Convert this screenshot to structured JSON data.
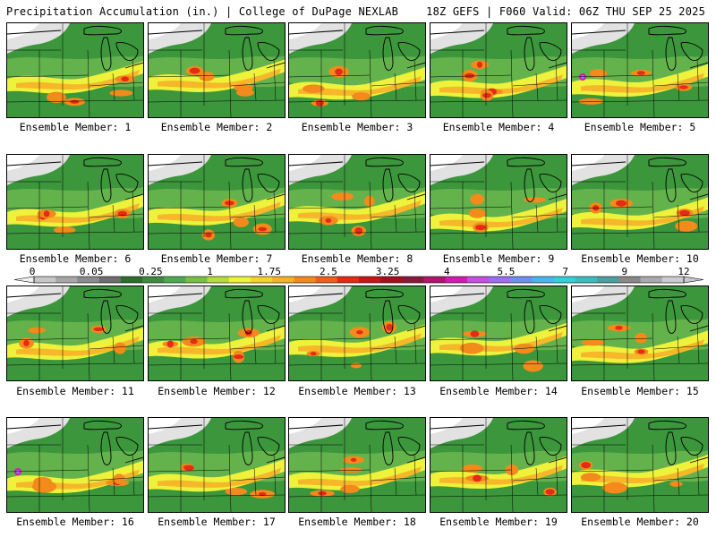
{
  "header": {
    "left": "Precipitation Accumulation (in.) | College of DuPage NEXLAB",
    "right": "18Z GEFS | F060 Valid: 06Z THU SEP 25 2025"
  },
  "colorbar": {
    "labels": [
      "0",
      "0.05",
      "0.25",
      "1",
      "1.75",
      "2.5",
      "3.25",
      "4",
      "5.5",
      "7",
      "9",
      "12"
    ],
    "colors": [
      "#c6c6c6",
      "#a7a7a7",
      "#8b8b8b",
      "#6e6e6e",
      "#2e6d2e",
      "#3e8a3e",
      "#4fa84f",
      "#76c043",
      "#b5dc3a",
      "#eef23a",
      "#f6d22c",
      "#f7b125",
      "#f38a1c",
      "#ee5f19",
      "#e52a16",
      "#c9141a",
      "#a50e1d",
      "#8b1a3a",
      "#b2156c",
      "#d61ab0",
      "#c54fe0",
      "#9c6ff0",
      "#6f8ff0",
      "#49b4ee",
      "#33d0d8",
      "#3bbcbc",
      "#4d9e9e",
      "#888888",
      "#aaaaaa",
      "#cccccc"
    ]
  },
  "members": [
    {
      "label": "Ensemble Member: 1"
    },
    {
      "label": "Ensemble Member: 2"
    },
    {
      "label": "Ensemble Member: 3"
    },
    {
      "label": "Ensemble Member: 4"
    },
    {
      "label": "Ensemble Member: 5"
    },
    {
      "label": "Ensemble Member: 6"
    },
    {
      "label": "Ensemble Member: 7"
    },
    {
      "label": "Ensemble Member: 8"
    },
    {
      "label": "Ensemble Member: 9"
    },
    {
      "label": "Ensemble Member: 10"
    },
    {
      "label": "Ensemble Member: 11"
    },
    {
      "label": "Ensemble Member: 12"
    },
    {
      "label": "Ensemble Member: 13"
    },
    {
      "label": "Ensemble Member: 14"
    },
    {
      "label": "Ensemble Member: 15"
    },
    {
      "label": "Ensemble Member: 16"
    },
    {
      "label": "Ensemble Member: 17"
    },
    {
      "label": "Ensemble Member: 18"
    },
    {
      "label": "Ensemble Member: 19"
    },
    {
      "label": "Ensemble Member: 20"
    }
  ]
}
